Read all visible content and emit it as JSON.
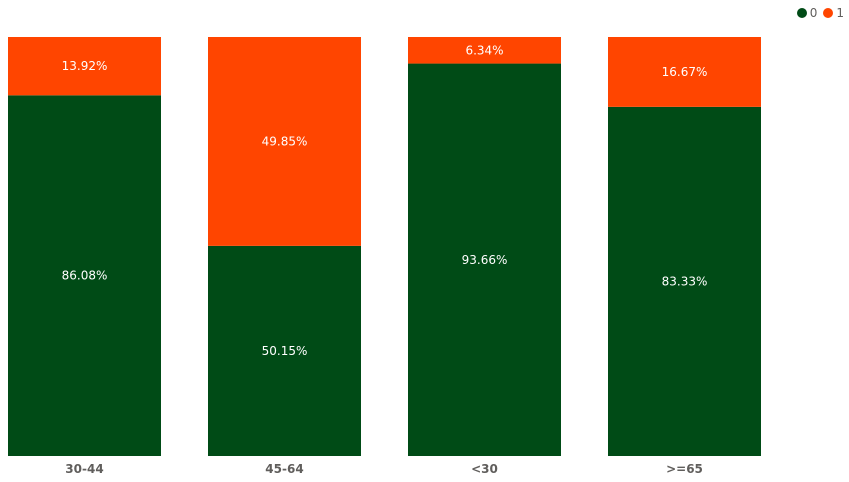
{
  "chart_data": {
    "type": "bar",
    "stacked": true,
    "normalized": true,
    "categories": [
      "30-44",
      "45-64",
      "<30",
      ">=65"
    ],
    "series": [
      {
        "name": "0",
        "color": "#004b16",
        "values": [
          86.08,
          50.15,
          93.66,
          83.33
        ],
        "labels": [
          "86.08%",
          "50.15%",
          "93.66%",
          "83.33%"
        ]
      },
      {
        "name": "1",
        "color": "#ff4500",
        "values": [
          13.92,
          49.85,
          6.34,
          16.67
        ],
        "labels": [
          "13.92%",
          "49.85%",
          "6.34%",
          "16.67%"
        ]
      }
    ],
    "ylim": [
      0,
      100
    ],
    "legend_position": "top-right",
    "grid": false
  }
}
